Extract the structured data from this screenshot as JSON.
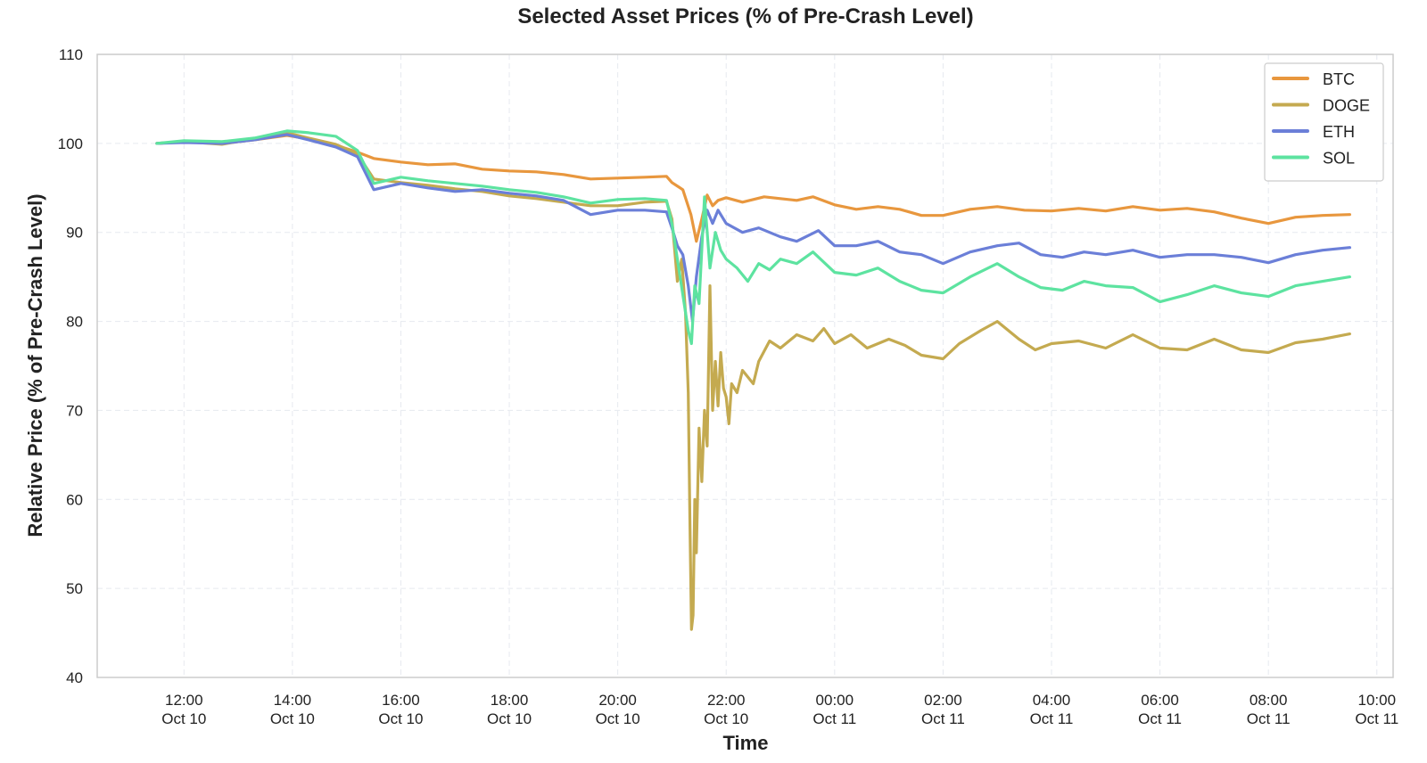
{
  "chart_data": {
    "type": "line",
    "title": "Selected Asset Prices (% of Pre-Crash Level)",
    "xlabel": "Time",
    "ylabel": "Relative Price (% of Pre-Crash Level)",
    "xlim_hours": [
      10.4,
      34.3
    ],
    "ylim": [
      40,
      110
    ],
    "y_ticks": [
      40,
      50,
      60,
      70,
      80,
      90,
      100,
      110
    ],
    "x_ticks": [
      {
        "hour": 12,
        "label1": "12:00",
        "label2": "Oct 10"
      },
      {
        "hour": 14,
        "label1": "14:00",
        "label2": "Oct 10"
      },
      {
        "hour": 16,
        "label1": "16:00",
        "label2": "Oct 10"
      },
      {
        "hour": 18,
        "label1": "18:00",
        "label2": "Oct 10"
      },
      {
        "hour": 20,
        "label1": "20:00",
        "label2": "Oct 10"
      },
      {
        "hour": 22,
        "label1": "22:00",
        "label2": "Oct 10"
      },
      {
        "hour": 24,
        "label1": "00:00",
        "label2": "Oct 11"
      },
      {
        "hour": 26,
        "label1": "02:00",
        "label2": "Oct 11"
      },
      {
        "hour": 28,
        "label1": "04:00",
        "label2": "Oct 11"
      },
      {
        "hour": 30,
        "label1": "06:00",
        "label2": "Oct 11"
      },
      {
        "hour": 32,
        "label1": "08:00",
        "label2": "Oct 11"
      },
      {
        "hour": 34,
        "label1": "10:00",
        "label2": "Oct 11"
      }
    ],
    "grid": true,
    "legend_position": "top-right",
    "series": [
      {
        "name": "BTC",
        "color": "#e8973e",
        "points": [
          [
            11.5,
            100.0
          ],
          [
            12.0,
            100.2
          ],
          [
            12.7,
            100.0
          ],
          [
            13.3,
            100.4
          ],
          [
            13.9,
            100.9
          ],
          [
            14.3,
            100.5
          ],
          [
            14.8,
            99.8
          ],
          [
            15.2,
            99.0
          ],
          [
            15.5,
            98.3
          ],
          [
            16.0,
            97.9
          ],
          [
            16.5,
            97.6
          ],
          [
            17.0,
            97.7
          ],
          [
            17.5,
            97.1
          ],
          [
            18.0,
            96.9
          ],
          [
            18.5,
            96.8
          ],
          [
            19.0,
            96.5
          ],
          [
            19.5,
            96.0
          ],
          [
            20.0,
            96.1
          ],
          [
            20.5,
            96.2
          ],
          [
            20.9,
            96.3
          ],
          [
            21.0,
            95.6
          ],
          [
            21.2,
            94.8
          ],
          [
            21.35,
            92.0
          ],
          [
            21.45,
            89.0
          ],
          [
            21.55,
            91.5
          ],
          [
            21.65,
            94.2
          ],
          [
            21.75,
            93.0
          ],
          [
            21.85,
            93.6
          ],
          [
            22.0,
            93.9
          ],
          [
            22.3,
            93.4
          ],
          [
            22.7,
            94.0
          ],
          [
            23.0,
            93.8
          ],
          [
            23.3,
            93.6
          ],
          [
            23.6,
            94.0
          ],
          [
            24.0,
            93.1
          ],
          [
            24.4,
            92.6
          ],
          [
            24.8,
            92.9
          ],
          [
            25.2,
            92.6
          ],
          [
            25.6,
            91.9
          ],
          [
            26.0,
            91.9
          ],
          [
            26.5,
            92.6
          ],
          [
            27.0,
            92.9
          ],
          [
            27.5,
            92.5
          ],
          [
            28.0,
            92.4
          ],
          [
            28.5,
            92.7
          ],
          [
            29.0,
            92.4
          ],
          [
            29.5,
            92.9
          ],
          [
            30.0,
            92.5
          ],
          [
            30.5,
            92.7
          ],
          [
            31.0,
            92.3
          ],
          [
            31.5,
            91.6
          ],
          [
            32.0,
            91.0
          ],
          [
            32.5,
            91.7
          ],
          [
            33.0,
            91.9
          ],
          [
            33.5,
            92.0
          ]
        ]
      },
      {
        "name": "DOGE",
        "color": "#c4aa50",
        "points": [
          [
            11.5,
            100.0
          ],
          [
            12.0,
            100.2
          ],
          [
            12.7,
            99.9
          ],
          [
            13.3,
            100.5
          ],
          [
            13.9,
            101.2
          ],
          [
            14.3,
            100.6
          ],
          [
            14.8,
            99.9
          ],
          [
            15.2,
            98.8
          ],
          [
            15.5,
            96.0
          ],
          [
            16.0,
            95.6
          ],
          [
            16.5,
            95.3
          ],
          [
            17.0,
            94.9
          ],
          [
            17.5,
            94.6
          ],
          [
            18.0,
            94.1
          ],
          [
            18.5,
            93.8
          ],
          [
            19.0,
            93.4
          ],
          [
            19.5,
            93.0
          ],
          [
            20.0,
            93.0
          ],
          [
            20.5,
            93.4
          ],
          [
            20.9,
            93.5
          ],
          [
            21.0,
            91.5
          ],
          [
            21.05,
            88.0
          ],
          [
            21.1,
            84.5
          ],
          [
            21.18,
            87.0
          ],
          [
            21.25,
            81.0
          ],
          [
            21.3,
            72.0
          ],
          [
            21.33,
            58.0
          ],
          [
            21.36,
            45.4
          ],
          [
            21.39,
            47.0
          ],
          [
            21.42,
            60.0
          ],
          [
            21.45,
            54.0
          ],
          [
            21.5,
            68.0
          ],
          [
            21.55,
            62.0
          ],
          [
            21.6,
            70.0
          ],
          [
            21.65,
            66.0
          ],
          [
            21.7,
            84.0
          ],
          [
            21.75,
            70.0
          ],
          [
            21.8,
            75.5
          ],
          [
            21.85,
            70.5
          ],
          [
            21.9,
            76.5
          ],
          [
            21.95,
            72.5
          ],
          [
            22.0,
            71.5
          ],
          [
            22.05,
            68.5
          ],
          [
            22.1,
            73.0
          ],
          [
            22.2,
            72.0
          ],
          [
            22.3,
            74.5
          ],
          [
            22.5,
            73.0
          ],
          [
            22.6,
            75.5
          ],
          [
            22.8,
            77.8
          ],
          [
            23.0,
            77.0
          ],
          [
            23.3,
            78.5
          ],
          [
            23.6,
            77.8
          ],
          [
            23.8,
            79.2
          ],
          [
            24.0,
            77.5
          ],
          [
            24.3,
            78.5
          ],
          [
            24.6,
            77.0
          ],
          [
            25.0,
            78.0
          ],
          [
            25.3,
            77.3
          ],
          [
            25.6,
            76.2
          ],
          [
            26.0,
            75.8
          ],
          [
            26.3,
            77.5
          ],
          [
            26.7,
            79.0
          ],
          [
            27.0,
            80.0
          ],
          [
            27.4,
            78.0
          ],
          [
            27.7,
            76.8
          ],
          [
            28.0,
            77.5
          ],
          [
            28.5,
            77.8
          ],
          [
            29.0,
            77.0
          ],
          [
            29.5,
            78.5
          ],
          [
            30.0,
            77.0
          ],
          [
            30.5,
            76.8
          ],
          [
            31.0,
            78.0
          ],
          [
            31.5,
            76.8
          ],
          [
            32.0,
            76.5
          ],
          [
            32.5,
            77.6
          ],
          [
            33.0,
            78.0
          ],
          [
            33.5,
            78.6
          ]
        ]
      },
      {
        "name": "ETH",
        "color": "#6b7fd8",
        "points": [
          [
            11.5,
            100.0
          ],
          [
            12.0,
            100.1
          ],
          [
            12.7,
            100.0
          ],
          [
            13.3,
            100.4
          ],
          [
            13.9,
            101.0
          ],
          [
            14.3,
            100.4
          ],
          [
            14.8,
            99.6
          ],
          [
            15.2,
            98.5
          ],
          [
            15.5,
            94.8
          ],
          [
            16.0,
            95.5
          ],
          [
            16.5,
            95.0
          ],
          [
            17.0,
            94.6
          ],
          [
            17.5,
            94.8
          ],
          [
            18.0,
            94.4
          ],
          [
            18.5,
            94.1
          ],
          [
            19.0,
            93.6
          ],
          [
            19.5,
            92.0
          ],
          [
            20.0,
            92.5
          ],
          [
            20.5,
            92.5
          ],
          [
            20.9,
            92.3
          ],
          [
            21.0,
            90.5
          ],
          [
            21.1,
            88.5
          ],
          [
            21.2,
            87.5
          ],
          [
            21.3,
            84.0
          ],
          [
            21.38,
            80.0
          ],
          [
            21.45,
            85.0
          ],
          [
            21.55,
            89.5
          ],
          [
            21.65,
            92.5
          ],
          [
            21.75,
            91.0
          ],
          [
            21.85,
            92.5
          ],
          [
            22.0,
            91.0
          ],
          [
            22.3,
            90.0
          ],
          [
            22.6,
            90.5
          ],
          [
            23.0,
            89.5
          ],
          [
            23.3,
            89.0
          ],
          [
            23.7,
            90.2
          ],
          [
            24.0,
            88.5
          ],
          [
            24.4,
            88.5
          ],
          [
            24.8,
            89.0
          ],
          [
            25.2,
            87.8
          ],
          [
            25.6,
            87.5
          ],
          [
            26.0,
            86.5
          ],
          [
            26.5,
            87.8
          ],
          [
            27.0,
            88.5
          ],
          [
            27.4,
            88.8
          ],
          [
            27.8,
            87.5
          ],
          [
            28.2,
            87.2
          ],
          [
            28.6,
            87.8
          ],
          [
            29.0,
            87.5
          ],
          [
            29.5,
            88.0
          ],
          [
            30.0,
            87.2
          ],
          [
            30.5,
            87.5
          ],
          [
            31.0,
            87.5
          ],
          [
            31.5,
            87.2
          ],
          [
            32.0,
            86.6
          ],
          [
            32.5,
            87.5
          ],
          [
            33.0,
            88.0
          ],
          [
            33.5,
            88.3
          ]
        ]
      },
      {
        "name": "SOL",
        "color": "#5de3a0",
        "points": [
          [
            11.5,
            100.0
          ],
          [
            12.0,
            100.3
          ],
          [
            12.7,
            100.2
          ],
          [
            13.3,
            100.6
          ],
          [
            13.9,
            101.4
          ],
          [
            14.3,
            101.2
          ],
          [
            14.8,
            100.8
          ],
          [
            15.2,
            99.2
          ],
          [
            15.5,
            95.5
          ],
          [
            16.0,
            96.2
          ],
          [
            16.5,
            95.8
          ],
          [
            17.0,
            95.5
          ],
          [
            17.5,
            95.2
          ],
          [
            18.0,
            94.8
          ],
          [
            18.5,
            94.5
          ],
          [
            19.0,
            94.0
          ],
          [
            19.5,
            93.3
          ],
          [
            20.0,
            93.7
          ],
          [
            20.5,
            93.8
          ],
          [
            20.9,
            93.6
          ],
          [
            21.0,
            91.0
          ],
          [
            21.1,
            87.0
          ],
          [
            21.2,
            83.0
          ],
          [
            21.3,
            79.0
          ],
          [
            21.36,
            77.5
          ],
          [
            21.42,
            84.0
          ],
          [
            21.5,
            82.0
          ],
          [
            21.6,
            94.0
          ],
          [
            21.7,
            86.0
          ],
          [
            21.8,
            90.0
          ],
          [
            21.9,
            88.0
          ],
          [
            22.0,
            87.0
          ],
          [
            22.2,
            86.0
          ],
          [
            22.4,
            84.5
          ],
          [
            22.6,
            86.5
          ],
          [
            22.8,
            85.8
          ],
          [
            23.0,
            87.0
          ],
          [
            23.3,
            86.5
          ],
          [
            23.6,
            87.8
          ],
          [
            24.0,
            85.5
          ],
          [
            24.4,
            85.2
          ],
          [
            24.8,
            86.0
          ],
          [
            25.2,
            84.5
          ],
          [
            25.6,
            83.5
          ],
          [
            26.0,
            83.2
          ],
          [
            26.5,
            85.0
          ],
          [
            27.0,
            86.5
          ],
          [
            27.4,
            85.0
          ],
          [
            27.8,
            83.8
          ],
          [
            28.2,
            83.5
          ],
          [
            28.6,
            84.5
          ],
          [
            29.0,
            84.0
          ],
          [
            29.5,
            83.8
          ],
          [
            30.0,
            82.2
          ],
          [
            30.5,
            83.0
          ],
          [
            31.0,
            84.0
          ],
          [
            31.5,
            83.2
          ],
          [
            32.0,
            82.8
          ],
          [
            32.5,
            84.0
          ],
          [
            33.0,
            84.5
          ],
          [
            33.5,
            85.0
          ]
        ]
      }
    ]
  }
}
